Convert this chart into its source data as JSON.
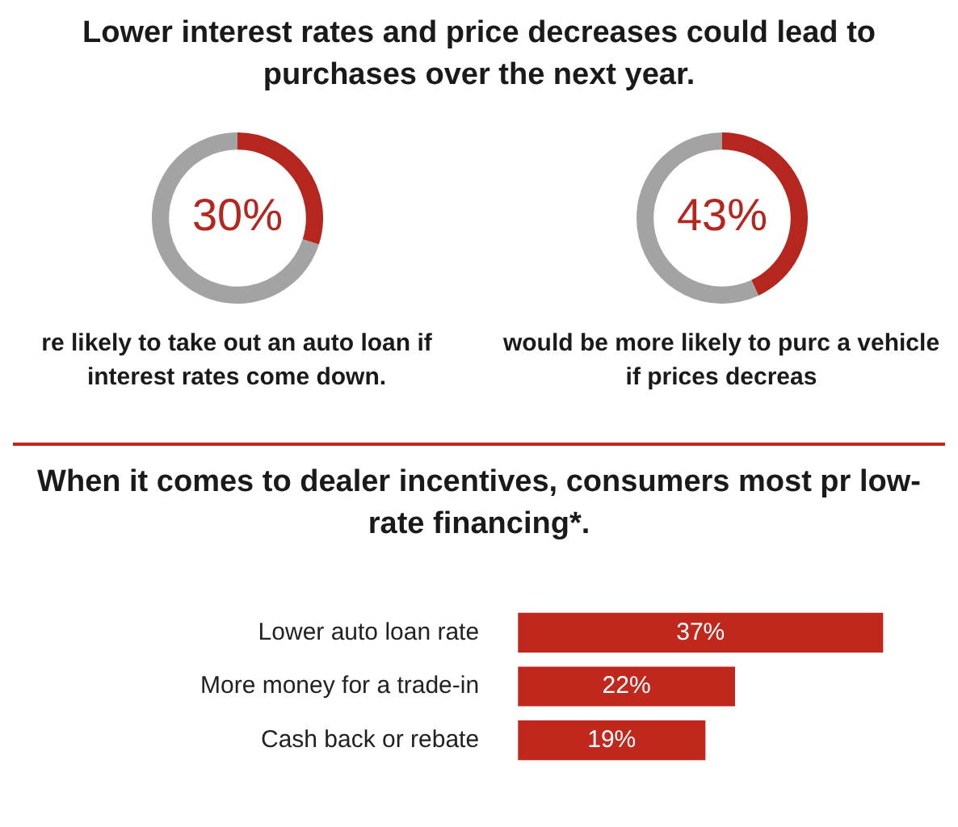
{
  "chart_data": [
    {
      "type": "donut",
      "title": "Lower interest rates and price decreases could lead to purchases over the next year.",
      "categories": [
        null,
        null
      ],
      "values": [
        30,
        70
      ],
      "colors": [
        "#b5261e",
        "#a3a3a3"
      ],
      "value_labels": [
        "30%",
        null
      ],
      "annotations": [
        "re likely to take out an auto loan if interest rates come down."
      ]
    },
    {
      "type": "donut",
      "categories": [
        null,
        null
      ],
      "values": [
        43,
        57
      ],
      "colors": [
        "#b5261e",
        "#a3a3a3"
      ],
      "value_labels": [
        "43%",
        null
      ],
      "annotations": [
        "would be more likely to purc a vehicle if prices decreas"
      ]
    },
    {
      "type": "bar",
      "orientation": "horizontal",
      "title": "When it comes to dealer incentives, consumers most pr low-rate financing*.",
      "categories": [
        "Lower auto loan rate",
        "More money for a trade-in",
        "Cash back or rebate"
      ],
      "values": [
        37,
        22,
        19
      ],
      "color": "#c0281e",
      "value_labels": [
        "37%",
        "22%",
        "19%"
      ]
    }
  ]
}
